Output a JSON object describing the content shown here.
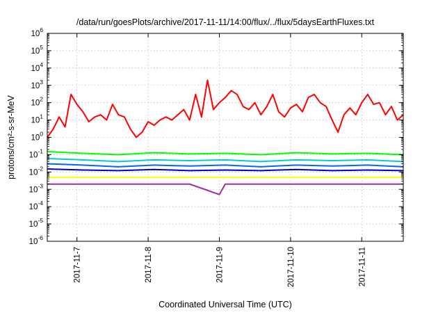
{
  "chart_data": {
    "type": "line",
    "title": "/data/run/goesPlots/archive/2017-11-11/14:00/flux/../flux/5daysEarthFluxes.txt",
    "xlabel": "Coordinated Universal Time (UTC)",
    "ylabel": "protons/cm²-s-sr-MeV",
    "y_scale": "log",
    "ylim": [
      1e-06,
      1000000.0
    ],
    "xlim": [
      "2017-11-06T14:00",
      "2017-11-11T14:00"
    ],
    "grid": true,
    "x_ticks": [
      "2017-11-7",
      "2017-11-8",
      "2017-11-9",
      "2017-11-10",
      "2017-11-11"
    ],
    "x_tick_dates": [
      "2017-11-07T00:00",
      "2017-11-08T00:00",
      "2017-11-09T00:00",
      "2017-11-10T00:00",
      "2017-11-11T00:00"
    ],
    "y_ticks": [
      {
        "value": 1e-06,
        "base": "10",
        "exp": "-6"
      },
      {
        "value": 1e-05,
        "base": "10",
        "exp": "-5"
      },
      {
        "value": 0.0001,
        "base": "10",
        "exp": "-4"
      },
      {
        "value": 0.001,
        "base": "10",
        "exp": "-3"
      },
      {
        "value": 0.01,
        "base": "10",
        "exp": "-2"
      },
      {
        "value": 0.1,
        "base": "10",
        "exp": "-1"
      },
      {
        "value": 1,
        "base": "10",
        "exp": "0"
      },
      {
        "value": 10,
        "base": "10",
        "exp": "1"
      },
      {
        "value": 100,
        "base": "10",
        "exp": "2"
      },
      {
        "value": 1000,
        "base": "10",
        "exp": "3"
      },
      {
        "value": 10000,
        "base": "10",
        "exp": "4"
      },
      {
        "value": 100000,
        "base": "10",
        "exp": "5"
      },
      {
        "value": 1000000,
        "base": "10",
        "exp": "6"
      }
    ],
    "series": [
      {
        "color": "#ff0000",
        "x": [
          "2017-11-06T14:00",
          "2017-11-06T16:00",
          "2017-11-06T18:00",
          "2017-11-06T20:00",
          "2017-11-06T22:00",
          "2017-11-07T00:00",
          "2017-11-07T02:00",
          "2017-11-07T04:00",
          "2017-11-07T06:00",
          "2017-11-07T08:00",
          "2017-11-07T10:00",
          "2017-11-07T12:00",
          "2017-11-07T14:00",
          "2017-11-07T16:00",
          "2017-11-07T18:00",
          "2017-11-07T20:00",
          "2017-11-07T22:00",
          "2017-11-08T00:00",
          "2017-11-08T02:00",
          "2017-11-08T04:00",
          "2017-11-08T06:00",
          "2017-11-08T08:00",
          "2017-11-08T10:00",
          "2017-11-08T12:00",
          "2017-11-08T14:00",
          "2017-11-08T16:00",
          "2017-11-08T18:00",
          "2017-11-08T20:00",
          "2017-11-08T22:00",
          "2017-11-09T00:00",
          "2017-11-09T02:00",
          "2017-11-09T04:00",
          "2017-11-09T06:00",
          "2017-11-09T08:00",
          "2017-11-09T10:00",
          "2017-11-09T12:00",
          "2017-11-09T14:00",
          "2017-11-09T16:00",
          "2017-11-09T18:00",
          "2017-11-09T20:00",
          "2017-11-09T22:00",
          "2017-11-10T00:00",
          "2017-11-10T02:00",
          "2017-11-10T04:00",
          "2017-11-10T06:00",
          "2017-11-10T08:00",
          "2017-11-10T10:00",
          "2017-11-10T12:00",
          "2017-11-10T14:00",
          "2017-11-10T16:00",
          "2017-11-10T18:00",
          "2017-11-10T20:00",
          "2017-11-10T22:00",
          "2017-11-11T00:00",
          "2017-11-11T02:00",
          "2017-11-11T04:00",
          "2017-11-11T06:00",
          "2017-11-11T08:00",
          "2017-11-11T10:00",
          "2017-11-11T12:00",
          "2017-11-11T14:00"
        ],
        "values": [
          1,
          3,
          15,
          4,
          300,
          80,
          30,
          8,
          15,
          20,
          10,
          80,
          20,
          15,
          3,
          1,
          2,
          8,
          5,
          10,
          15,
          10,
          20,
          40,
          10,
          300,
          15,
          2000,
          40,
          100,
          200,
          500,
          300,
          60,
          40,
          100,
          20,
          60,
          300,
          30,
          15,
          50,
          80,
          30,
          200,
          300,
          100,
          60,
          10,
          2,
          20,
          50,
          20,
          100,
          300,
          80,
          100,
          20,
          60,
          10,
          20
        ]
      },
      {
        "color": "#00ff00",
        "x": [
          "2017-11-06T14:00",
          "2017-11-07T02:00",
          "2017-11-07T14:00",
          "2017-11-08T02:00",
          "2017-11-08T14:00",
          "2017-11-09T02:00",
          "2017-11-09T14:00",
          "2017-11-10T02:00",
          "2017-11-10T14:00",
          "2017-11-11T02:00",
          "2017-11-11T14:00"
        ],
        "values": [
          0.15,
          0.12,
          0.1,
          0.13,
          0.11,
          0.12,
          0.1,
          0.13,
          0.11,
          0.12,
          0.1
        ]
      },
      {
        "color": "#00cccc",
        "x": [
          "2017-11-06T14:00",
          "2017-11-07T02:00",
          "2017-11-07T14:00",
          "2017-11-08T02:00",
          "2017-11-08T14:00",
          "2017-11-09T02:00",
          "2017-11-09T14:00",
          "2017-11-10T02:00",
          "2017-11-10T14:00",
          "2017-11-11T02:00",
          "2017-11-11T14:00"
        ],
        "values": [
          0.06,
          0.05,
          0.04,
          0.05,
          0.045,
          0.05,
          0.04,
          0.05,
          0.045,
          0.05,
          0.04
        ]
      },
      {
        "color": "#0066ff",
        "x": [
          "2017-11-06T14:00",
          "2017-11-07T02:00",
          "2017-11-07T14:00",
          "2017-11-08T02:00",
          "2017-11-08T14:00",
          "2017-11-09T02:00",
          "2017-11-09T14:00",
          "2017-11-10T02:00",
          "2017-11-10T14:00",
          "2017-11-11T02:00",
          "2017-11-11T14:00"
        ],
        "values": [
          0.03,
          0.025,
          0.02,
          0.025,
          0.022,
          0.025,
          0.02,
          0.025,
          0.022,
          0.025,
          0.02
        ]
      },
      {
        "color": "#0000cc",
        "x": [
          "2017-11-06T14:00",
          "2017-11-07T02:00",
          "2017-11-07T14:00",
          "2017-11-08T02:00",
          "2017-11-08T14:00",
          "2017-11-09T02:00",
          "2017-11-09T14:00",
          "2017-11-10T02:00",
          "2017-11-10T14:00",
          "2017-11-11T02:00",
          "2017-11-11T14:00"
        ],
        "values": [
          0.015,
          0.013,
          0.012,
          0.014,
          0.012,
          0.013,
          0.012,
          0.014,
          0.012,
          0.013,
          0.012
        ]
      },
      {
        "color": "#ffff00",
        "x": [
          "2017-11-06T14:00",
          "2017-11-07T02:00",
          "2017-11-07T14:00",
          "2017-11-08T02:00",
          "2017-11-08T14:00",
          "2017-11-09T02:00",
          "2017-11-09T14:00",
          "2017-11-10T02:00",
          "2017-11-10T14:00",
          "2017-11-11T02:00",
          "2017-11-11T14:00"
        ],
        "values": [
          0.005,
          0.005,
          0.005,
          0.005,
          0.005,
          0.005,
          0.005,
          0.005,
          0.005,
          0.005,
          0.005
        ]
      },
      {
        "color": "#993399",
        "x": [
          "2017-11-06T14:00",
          "2017-11-07T02:00",
          "2017-11-07T14:00",
          "2017-11-08T02:00",
          "2017-11-08T14:00",
          "2017-11-09T00:00",
          "2017-11-09T02:00",
          "2017-11-09T14:00",
          "2017-11-10T02:00",
          "2017-11-10T14:00",
          "2017-11-11T02:00",
          "2017-11-11T14:00"
        ],
        "values": [
          0.002,
          0.002,
          0.002,
          0.002,
          0.002,
          0.0005,
          0.002,
          0.002,
          0.002,
          0.002,
          0.002,
          0.002
        ]
      }
    ]
  }
}
